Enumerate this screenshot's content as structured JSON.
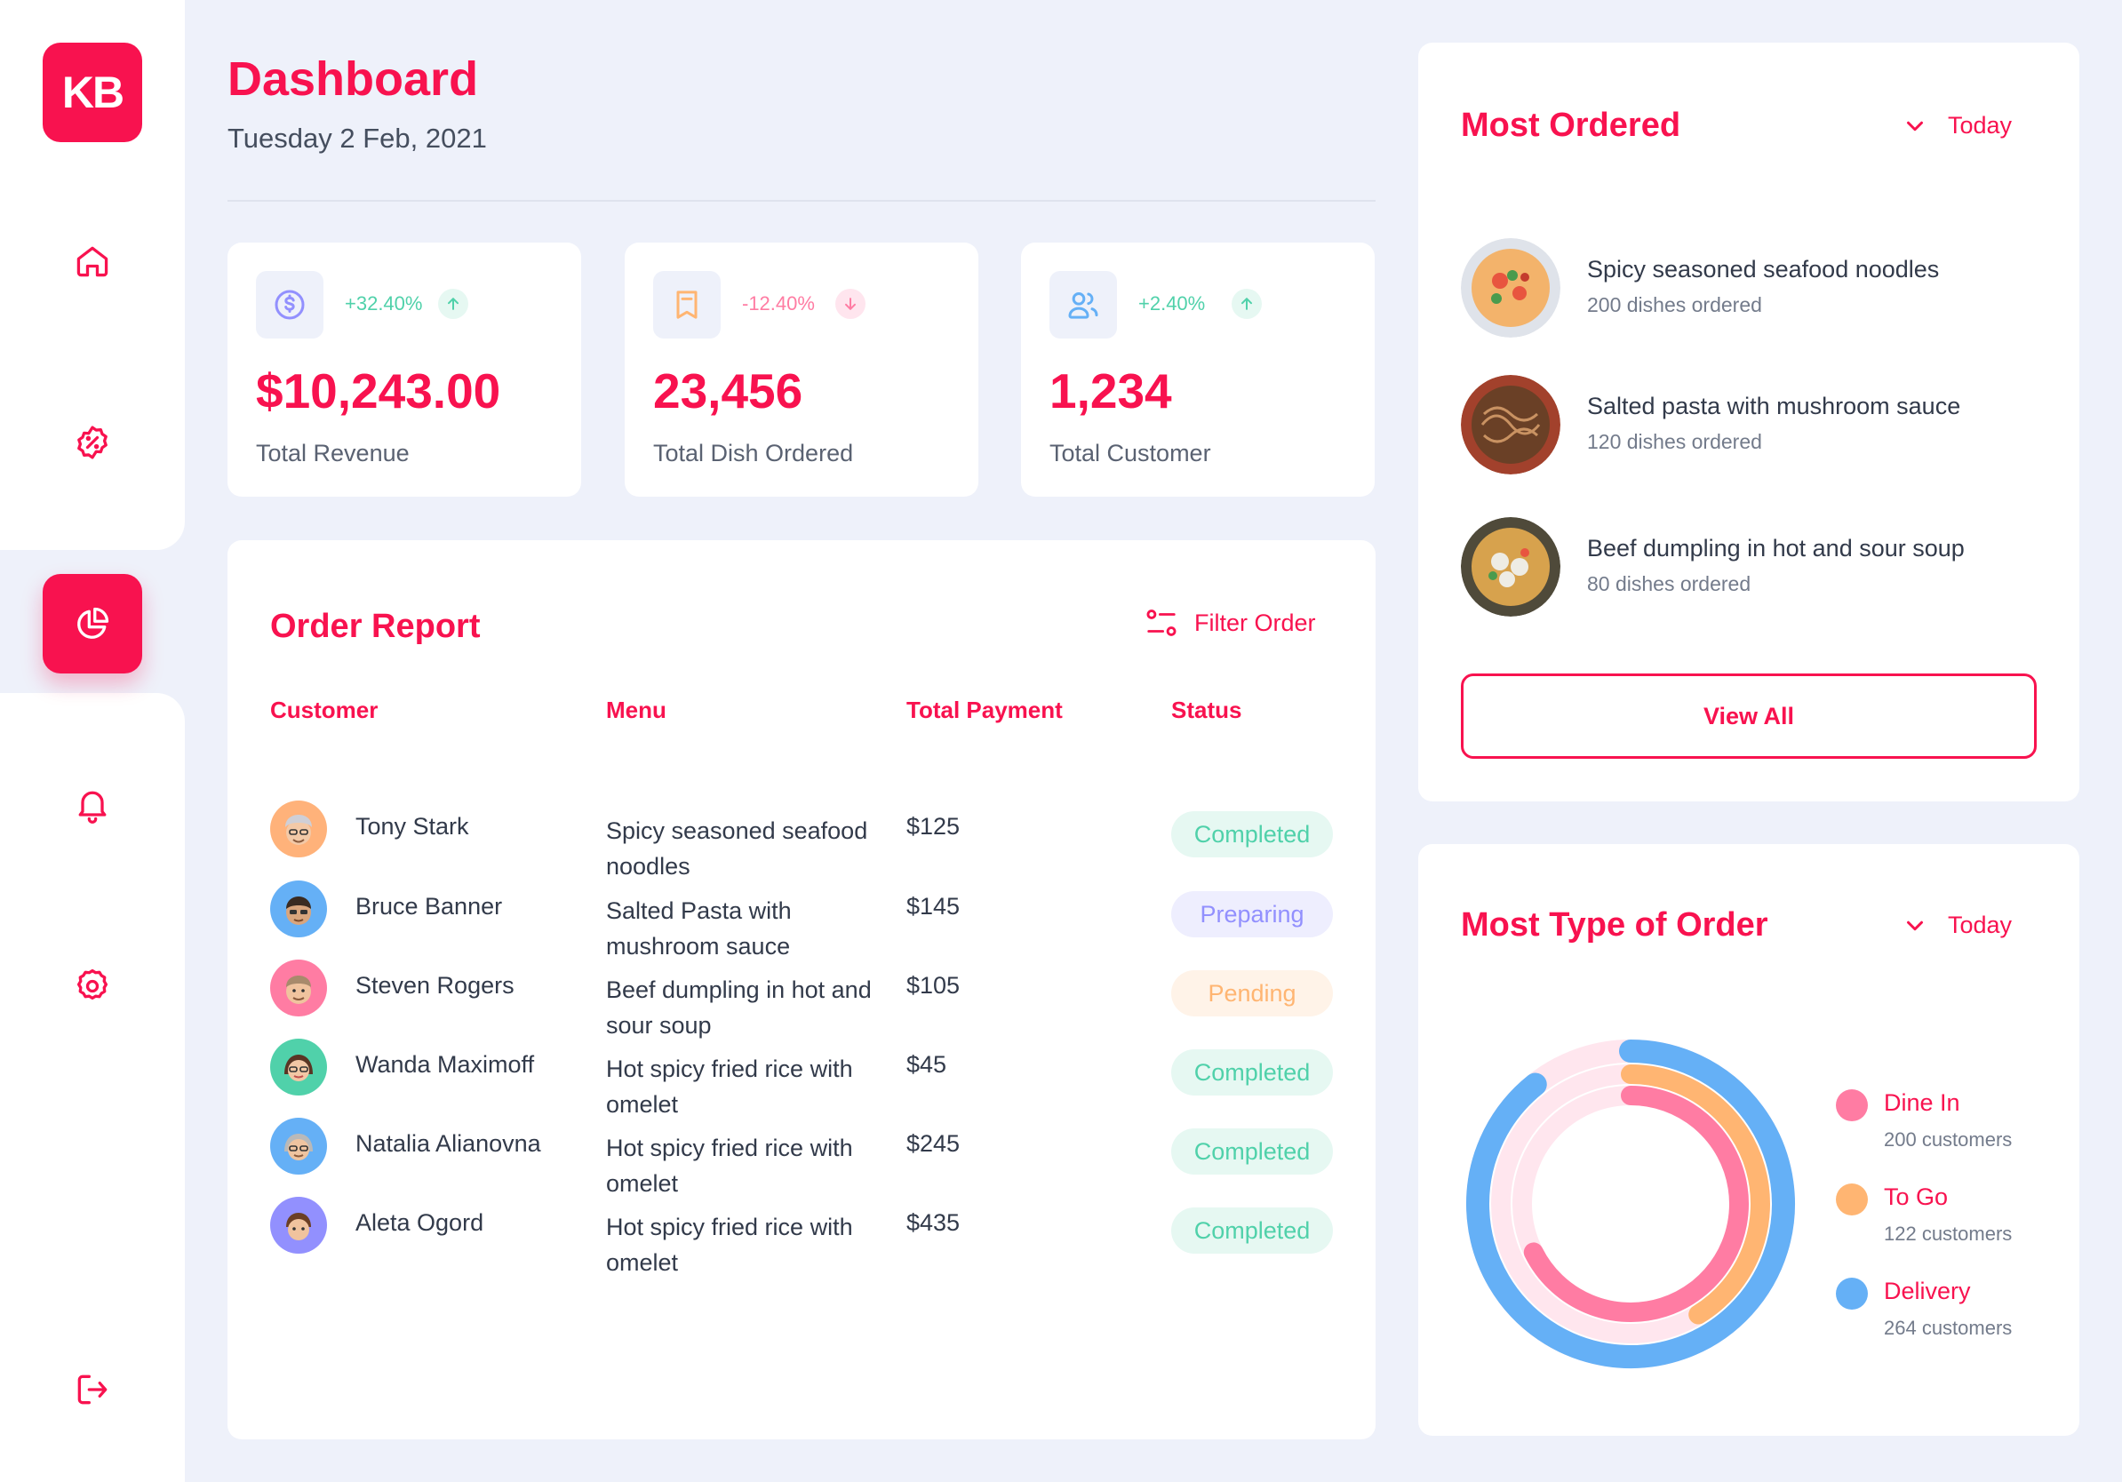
{
  "brand": {
    "logo_text": "KB",
    "accent": "#f8124f"
  },
  "sidebar": {
    "items": [
      {
        "icon": "home-icon",
        "active": false
      },
      {
        "icon": "discount-icon",
        "active": false
      },
      {
        "icon": "pie-chart-icon",
        "active": true
      },
      {
        "icon": "bell-icon",
        "active": false
      },
      {
        "icon": "gear-icon",
        "active": false
      },
      {
        "icon": "logout-icon",
        "active": false
      }
    ]
  },
  "header": {
    "title": "Dashboard",
    "date": "Tuesday 2 Feb, 2021"
  },
  "stats": [
    {
      "icon": "dollar-icon",
      "change": "+32.40%",
      "trend": "up",
      "value": "$10,243.00",
      "label": "Total Revenue"
    },
    {
      "icon": "bookmark-icon",
      "change": "-12.40%",
      "trend": "down",
      "value": "23,456",
      "label": "Total Dish Ordered"
    },
    {
      "icon": "users-icon",
      "change": "+2.40%",
      "trend": "up",
      "value": "1,234",
      "label": "Total Customer"
    }
  ],
  "order_report": {
    "title": "Order Report",
    "filter_label": "Filter Order",
    "columns": [
      "Customer",
      "Menu",
      "Total Payment",
      "Status"
    ],
    "rows": [
      {
        "customer": "Tony Stark",
        "menu": "Spicy seasoned seafood noodles",
        "payment": "$125",
        "status": "Completed"
      },
      {
        "customer": "Bruce Banner",
        "menu": "Salted Pasta with mushroom sauce",
        "payment": "$145",
        "status": "Preparing"
      },
      {
        "customer": "Steven Rogers",
        "menu": "Beef dumpling in hot and sour soup",
        "payment": "$105",
        "status": "Pending"
      },
      {
        "customer": "Wanda Maximoff",
        "menu": "Hot spicy fried rice with omelet",
        "payment": "$45",
        "status": "Completed"
      },
      {
        "customer": "Natalia Alianovna",
        "menu": "Hot spicy fried rice with omelet",
        "payment": "$245",
        "status": "Completed"
      },
      {
        "customer": "Aleta Ogord",
        "menu": "Hot spicy fried rice with omelet",
        "payment": "$435",
        "status": "Completed"
      }
    ],
    "status_colors": {
      "Completed": {
        "fg": "#50d1aa",
        "bg": "#e6f8f2"
      },
      "Preparing": {
        "fg": "#9290fe",
        "bg": "#eeeefe"
      },
      "Pending": {
        "fg": "#ffb572",
        "bg": "#fff3e8"
      }
    }
  },
  "most_ordered": {
    "title": "Most Ordered",
    "period": "Today",
    "items": [
      {
        "name": "Spicy seasoned seafood noodles",
        "count": "200 dishes ordered"
      },
      {
        "name": "Salted pasta with mushroom sauce",
        "count": "120 dishes ordered"
      },
      {
        "name": "Beef dumpling in hot and sour soup",
        "count": "80 dishes ordered"
      }
    ],
    "view_all_label": "View All"
  },
  "most_type": {
    "title": "Most Type of Order",
    "period": "Today",
    "segments": [
      {
        "name": "Dine In",
        "count": "200 customers",
        "value": 200,
        "color": "#ff7ca3"
      },
      {
        "name": "To Go",
        "count": "122 customers",
        "value": 122,
        "color": "#ffb572"
      },
      {
        "name": "Delivery",
        "count": "264 customers",
        "value": 264,
        "color": "#65b0f6"
      }
    ]
  }
}
